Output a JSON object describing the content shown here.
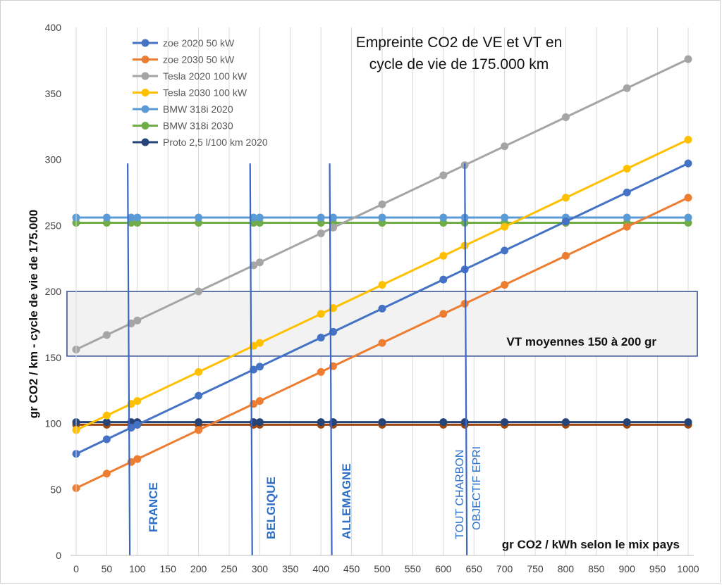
{
  "chart_data": {
    "type": "line",
    "title_lines": [
      "Empreinte CO2 de VE et VT en",
      "cycle de vie de 175.000 km"
    ],
    "xlabel": "gr CO2 / kWh selon le mix pays",
    "ylabel": "gr CO2 / km - cycle de vie de 175.000",
    "xlim": [
      0,
      1000
    ],
    "ylim": [
      0,
      400
    ],
    "xticks": [
      "0",
      "50",
      "100",
      "150",
      "200",
      "250",
      "300",
      "350",
      "400",
      "450",
      "500",
      "550",
      "600",
      "650",
      "700",
      "750",
      "800",
      "850",
      "900",
      "950",
      "1000"
    ],
    "yticks": [
      "0",
      "50",
      "100",
      "150",
      "200",
      "250",
      "300",
      "350",
      "400"
    ],
    "grid": "vertical",
    "legend_position": "top-left",
    "series": [
      {
        "name": "zoe 2020 50 kW",
        "color": "#4472c4",
        "slope": 0.22,
        "intercept": 77
      },
      {
        "name": "zoe 2030 50 kW",
        "color": "#ed7d31",
        "slope": 0.22,
        "intercept": 51
      },
      {
        "name": "Tesla 2020 100 kW",
        "color": "#a5a5a5",
        "slope": 0.22,
        "intercept": 156
      },
      {
        "name": "Tesla 2030 100 kW",
        "color": "#ffc000",
        "slope": 0.22,
        "intercept": 95
      },
      {
        "name": "BMW 318i 2020",
        "color": "#5b9bd5",
        "slope": 0,
        "intercept": 256
      },
      {
        "name": "BMW 318i 2030",
        "color": "#70ad47",
        "slope": 0,
        "intercept": 252
      },
      {
        "name": "Proto 2,5 l/100 km 2020",
        "color": "#264478",
        "slope": 0,
        "intercept": 101
      }
    ],
    "extra_series": [
      {
        "color": "#9e480e",
        "slope": 0,
        "intercept": 99
      }
    ],
    "x_points": [
      0,
      50,
      90,
      100,
      200,
      290,
      300,
      400,
      420,
      500,
      600,
      635,
      700,
      800,
      900,
      1000
    ],
    "band": {
      "y_low": 151,
      "y_high": 200,
      "x_from": -15,
      "x_to": 1015,
      "label": "VT moyennes 150 à 200 gr"
    },
    "vlines": [
      {
        "x": 90,
        "y_top": 297,
        "label": "FRANCE"
      },
      {
        "x": 290,
        "y_top": 297,
        "label": "BELGIQUE"
      },
      {
        "x": 420,
        "y_top": 297,
        "label": "ALLEMAGNE"
      },
      {
        "x": 635,
        "y_top": 297,
        "label": "TOUT CHARBON",
        "label2": "OBJECTIF EPRI"
      }
    ]
  }
}
